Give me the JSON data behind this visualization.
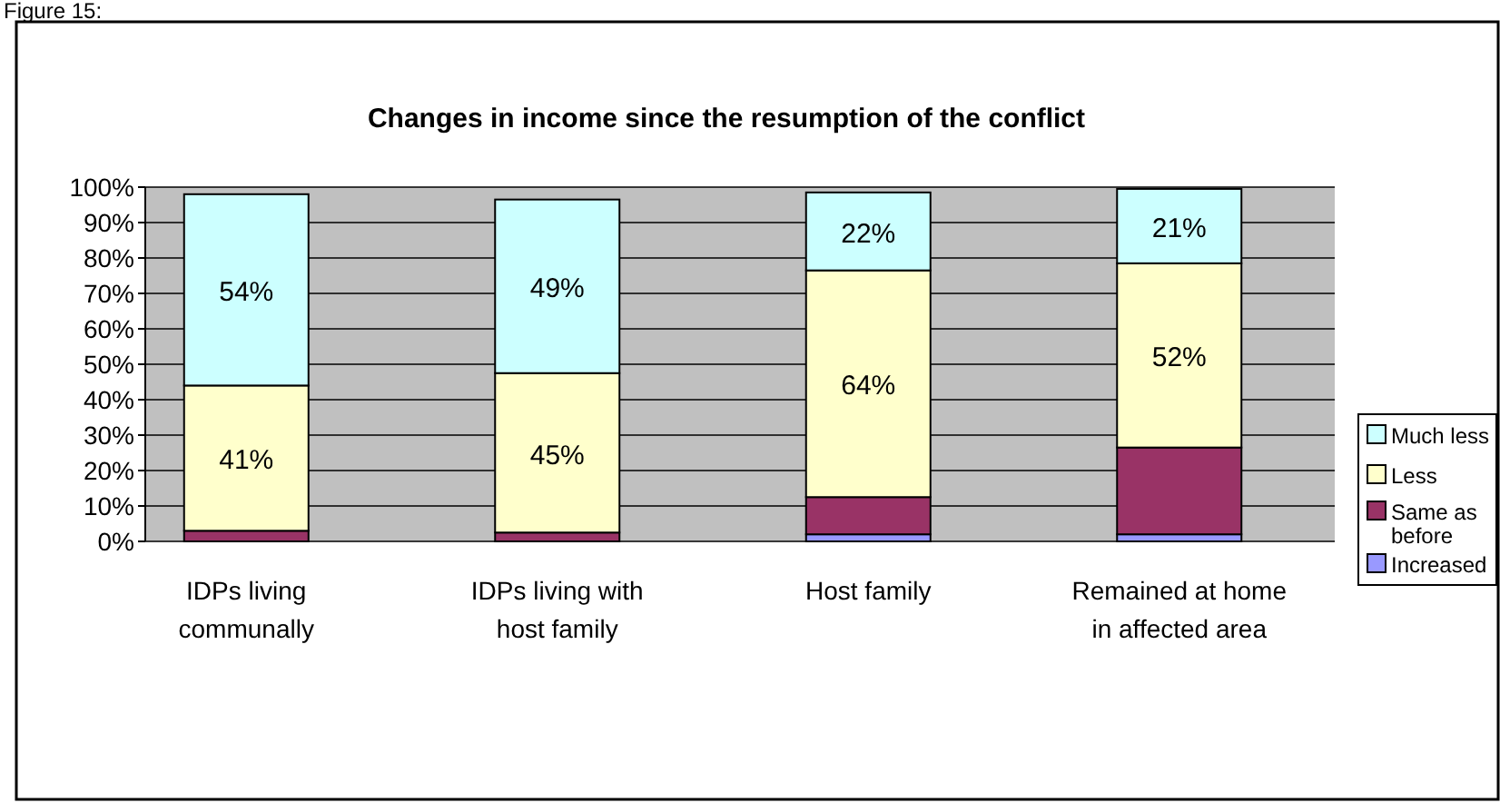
{
  "chart_data": {
    "type": "bar",
    "stacked": true,
    "title": "Changes in income since the resumption of the conflict",
    "annotations": [
      "Figure 15:"
    ],
    "categories": [
      "IDPs living communally",
      "IDPs living with host family",
      "Host family",
      "Remained at home in affected area"
    ],
    "series": [
      {
        "name": "Increased",
        "color": "#9999ff",
        "values": [
          null,
          null,
          2,
          2
        ],
        "value_labels": [
          null,
          null,
          null,
          null
        ]
      },
      {
        "name": "Same as before",
        "color": "#993366",
        "values": [
          3,
          2.5,
          10.5,
          24.5
        ],
        "value_labels": [
          null,
          null,
          null,
          null
        ]
      },
      {
        "name": "Less",
        "color": "#ffffcc",
        "values": [
          41,
          45,
          64,
          52
        ],
        "value_labels": [
          "41%",
          "45%",
          "64%",
          "52%"
        ]
      },
      {
        "name": "Much less",
        "color": "#ccffff",
        "values": [
          54,
          49,
          22,
          21
        ],
        "value_labels": [
          "54%",
          "49%",
          "22%",
          "21%"
        ]
      }
    ],
    "ylim": [
      0,
      100
    ],
    "yticks": [
      {
        "value": 0,
        "label": "0%"
      },
      {
        "value": 10,
        "label": "10%"
      },
      {
        "value": 20,
        "label": "20%"
      },
      {
        "value": 30,
        "label": "30%"
      },
      {
        "value": 40,
        "label": "40%"
      },
      {
        "value": 50,
        "label": "50%"
      },
      {
        "value": 60,
        "label": "60%"
      },
      {
        "value": 70,
        "label": "70%"
      },
      {
        "value": 80,
        "label": "80%"
      },
      {
        "value": 90,
        "label": "90%"
      },
      {
        "value": 100,
        "label": "100%"
      }
    ],
    "grid": "y",
    "legend": "right"
  }
}
